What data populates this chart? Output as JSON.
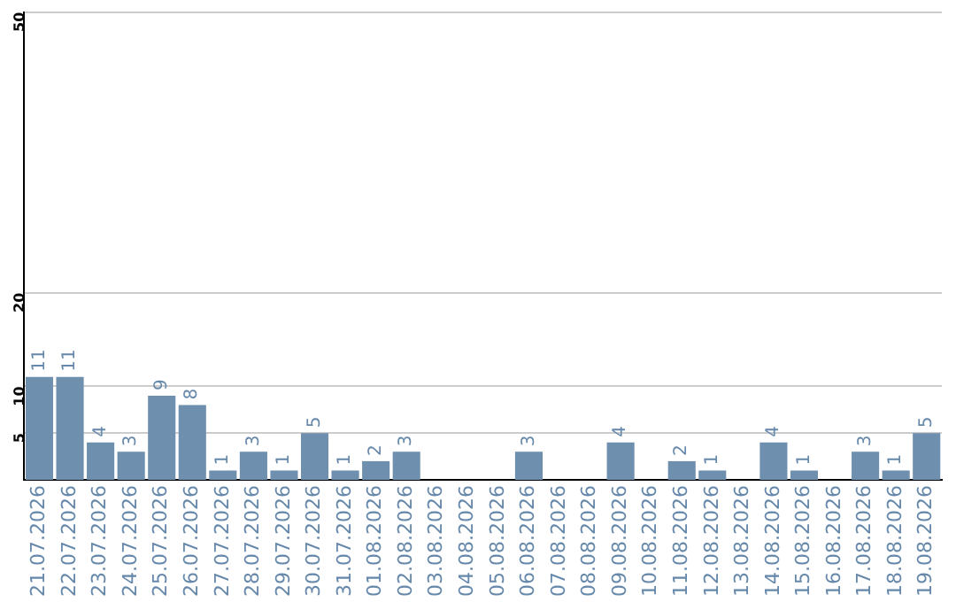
{
  "chart_data": {
    "type": "bar",
    "categories": [
      "21.07.2026",
      "22.07.2026",
      "23.07.2026",
      "24.07.2026",
      "25.07.2026",
      "26.07.2026",
      "27.07.2026",
      "28.07.2026",
      "29.07.2026",
      "30.07.2026",
      "31.07.2026",
      "01.08.2026",
      "02.08.2026",
      "03.08.2026",
      "04.08.2026",
      "05.08.2026",
      "06.08.2026",
      "07.08.2026",
      "08.08.2026",
      "09.08.2026",
      "10.08.2026",
      "11.08.2026",
      "12.08.2026",
      "13.08.2026",
      "14.08.2026",
      "15.08.2026",
      "16.08.2026",
      "17.08.2026",
      "18.08.2026",
      "19.08.2026"
    ],
    "values": [
      11,
      11,
      4,
      3,
      9,
      8,
      1,
      3,
      1,
      5,
      1,
      2,
      3,
      0,
      0,
      0,
      3,
      0,
      0,
      4,
      0,
      2,
      1,
      0,
      4,
      1,
      0,
      3,
      1,
      5
    ],
    "value_labels": [
      "11",
      "11",
      "4",
      "3",
      "9",
      "8",
      "1",
      "3",
      "1",
      "5",
      "1",
      "2",
      "3",
      null,
      null,
      null,
      "3",
      null,
      null,
      "4",
      null,
      "2",
      "1",
      null,
      "4",
      "1",
      null,
      "3",
      "1",
      "5"
    ],
    "color": "#6f8fae",
    "ylim": [
      0,
      50
    ],
    "yticks": [
      5,
      10,
      20,
      50
    ],
    "grid": "y"
  }
}
